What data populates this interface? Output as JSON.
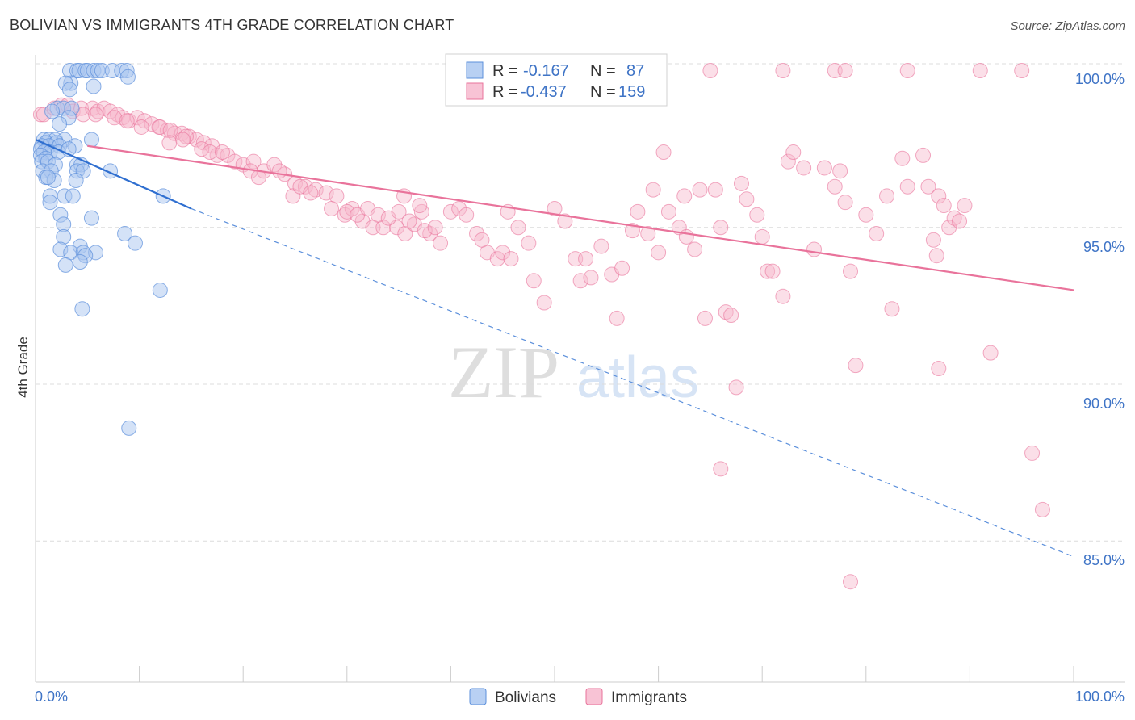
{
  "title": "BOLIVIAN VS IMMIGRANTS 4TH GRADE CORRELATION CHART",
  "source": "Source: ZipAtlas.com",
  "watermark": {
    "zip": "ZIP",
    "atlas": "atlas"
  },
  "legend": {
    "r_label": "R =",
    "n_label": "N =",
    "rows": [
      {
        "r": "-0.167",
        "n": "87",
        "color": "#5b8fdb"
      },
      {
        "r": "-0.437",
        "n": "159",
        "color": "#e9739b"
      }
    ]
  },
  "chart_data": {
    "type": "scatter",
    "title": "BOLIVIAN VS IMMIGRANTS 4TH GRADE CORRELATION CHART",
    "xlabel": "",
    "ylabel": "4th Grade",
    "xlim": [
      0,
      100
    ],
    "ylim": [
      80.5,
      100.4
    ],
    "x_tick_labels": [
      "0.0%",
      "100.0%"
    ],
    "y_ticks": [
      85,
      90,
      95,
      100
    ],
    "y_tick_labels": [
      "85.0%",
      "90.0%",
      "95.0%",
      "100.0%"
    ],
    "grid": "horizontal dashed",
    "legend_position": "top-center",
    "series": [
      {
        "name": "Bolivians",
        "color": "#5b8fdb",
        "fill": "#a9c6ef",
        "r": -0.167,
        "n": 87,
        "trend_solid": [
          [
            0,
            97.8
          ],
          [
            15,
            95.6
          ]
        ],
        "trend_dashed": [
          [
            15,
            95.6
          ],
          [
            100,
            84.5
          ]
        ],
        "points": [
          [
            3.3,
            100
          ],
          [
            4.0,
            100
          ],
          [
            4.2,
            100
          ],
          [
            4.8,
            100
          ],
          [
            5.0,
            100
          ],
          [
            5.6,
            100
          ],
          [
            6.0,
            100
          ],
          [
            6.4,
            100
          ],
          [
            7.4,
            100
          ],
          [
            8.3,
            100
          ],
          [
            8.8,
            100
          ],
          [
            3.4,
            99.6
          ],
          [
            2.9,
            99.6
          ],
          [
            5.6,
            99.5
          ],
          [
            3.3,
            99.4
          ],
          [
            8.9,
            99.8
          ],
          [
            2.1,
            98.8
          ],
          [
            2.7,
            98.8
          ],
          [
            3.5,
            98.8
          ],
          [
            1.6,
            98.7
          ],
          [
            3.2,
            98.5
          ],
          [
            2.3,
            98.3
          ],
          [
            0.8,
            97.8
          ],
          [
            1.3,
            97.8
          ],
          [
            1.9,
            97.8
          ],
          [
            2.8,
            97.8
          ],
          [
            5.4,
            97.8
          ],
          [
            1.0,
            97.7
          ],
          [
            2.0,
            97.7
          ],
          [
            0.6,
            97.6
          ],
          [
            1.3,
            97.6
          ],
          [
            2.3,
            97.6
          ],
          [
            3.8,
            97.6
          ],
          [
            0.5,
            97.5
          ],
          [
            0.8,
            97.4
          ],
          [
            1.4,
            97.4
          ],
          [
            2.2,
            97.4
          ],
          [
            3.2,
            97.5
          ],
          [
            0.5,
            97.3
          ],
          [
            1.0,
            97.2
          ],
          [
            0.6,
            97.1
          ],
          [
            1.2,
            97.1
          ],
          [
            1.9,
            97.0
          ],
          [
            4.0,
            97.0
          ],
          [
            4.4,
            97.0
          ],
          [
            0.7,
            96.8
          ],
          [
            1.5,
            96.8
          ],
          [
            1.0,
            96.6
          ],
          [
            4.0,
            96.8
          ],
          [
            4.6,
            96.8
          ],
          [
            7.2,
            96.8
          ],
          [
            1.8,
            96.5
          ],
          [
            1.2,
            96.6
          ],
          [
            3.9,
            96.5
          ],
          [
            2.8,
            96.0
          ],
          [
            1.4,
            96.0
          ],
          [
            3.6,
            96.0
          ],
          [
            1.4,
            95.8
          ],
          [
            12.3,
            96.0
          ],
          [
            2.4,
            95.4
          ],
          [
            5.4,
            95.3
          ],
          [
            2.7,
            95.1
          ],
          [
            8.6,
            94.8
          ],
          [
            2.7,
            94.7
          ],
          [
            9.6,
            94.5
          ],
          [
            4.3,
            94.4
          ],
          [
            2.4,
            94.3
          ],
          [
            3.4,
            94.2
          ],
          [
            4.6,
            94.2
          ],
          [
            5.8,
            94.2
          ],
          [
            4.8,
            94.1
          ],
          [
            4.3,
            93.9
          ],
          [
            2.9,
            93.8
          ],
          [
            12.0,
            93.0
          ],
          [
            4.5,
            92.4
          ],
          [
            9.0,
            88.6
          ]
        ]
      },
      {
        "name": "Immigrants",
        "color": "#e9739b",
        "fill": "#f6b9cd",
        "r": -0.437,
        "n": 159,
        "trend": [
          [
            5,
            97.6
          ],
          [
            100,
            93.0
          ]
        ],
        "points": [
          [
            65,
            100
          ],
          [
            72,
            100
          ],
          [
            77,
            100
          ],
          [
            78,
            100
          ],
          [
            84,
            100
          ],
          [
            91,
            100
          ],
          [
            95,
            100
          ],
          [
            0.5,
            98.6
          ],
          [
            0.8,
            98.6
          ],
          [
            1.8,
            98.8
          ],
          [
            2.5,
            98.9
          ],
          [
            3.1,
            98.9
          ],
          [
            3.6,
            98.7
          ],
          [
            4.4,
            98.8
          ],
          [
            5.5,
            98.8
          ],
          [
            6.0,
            98.7
          ],
          [
            6.6,
            98.8
          ],
          [
            7.2,
            98.7
          ],
          [
            7.9,
            98.6
          ],
          [
            8.4,
            98.5
          ],
          [
            9.0,
            98.4
          ],
          [
            9.8,
            98.5
          ],
          [
            10.5,
            98.4
          ],
          [
            11.2,
            98.3
          ],
          [
            11.9,
            98.2
          ],
          [
            12.7,
            98.1
          ],
          [
            13.4,
            98.0
          ],
          [
            14.1,
            98.0
          ],
          [
            14.8,
            97.9
          ],
          [
            15.5,
            97.8
          ],
          [
            16.2,
            97.7
          ],
          [
            17.0,
            97.6
          ],
          [
            4.6,
            98.6
          ],
          [
            5.8,
            98.6
          ],
          [
            7.6,
            98.5
          ],
          [
            8.8,
            98.4
          ],
          [
            10.2,
            98.2
          ],
          [
            12.0,
            98.2
          ],
          [
            13.0,
            98.1
          ],
          [
            14.5,
            97.9
          ],
          [
            16.0,
            97.5
          ],
          [
            17.5,
            97.3
          ],
          [
            18.5,
            97.3
          ],
          [
            19.2,
            97.1
          ],
          [
            20.0,
            97.0
          ],
          [
            21.0,
            97.1
          ],
          [
            22.0,
            96.8
          ],
          [
            23.0,
            97.0
          ],
          [
            24.0,
            96.7
          ],
          [
            25.0,
            96.4
          ],
          [
            26.0,
            96.3
          ],
          [
            27.0,
            96.2
          ],
          [
            28.0,
            96.1
          ],
          [
            29.0,
            96.0
          ],
          [
            12.9,
            97.7
          ],
          [
            14.2,
            97.8
          ],
          [
            16.8,
            97.4
          ],
          [
            18.0,
            97.4
          ],
          [
            20.7,
            96.8
          ],
          [
            21.5,
            96.6
          ],
          [
            23.5,
            96.8
          ],
          [
            24.8,
            96.0
          ],
          [
            25.5,
            96.3
          ],
          [
            26.5,
            96.1
          ],
          [
            28.5,
            95.6
          ],
          [
            29.8,
            95.4
          ],
          [
            30.5,
            95.6
          ],
          [
            31.5,
            95.2
          ],
          [
            32.5,
            95.0
          ],
          [
            33.5,
            95.0
          ],
          [
            34.8,
            95.0
          ],
          [
            35.6,
            94.8
          ],
          [
            36.5,
            95.1
          ],
          [
            37.2,
            95.5
          ],
          [
            38.0,
            94.8
          ],
          [
            39.0,
            94.5
          ],
          [
            30.0,
            95.5
          ],
          [
            31.0,
            95.4
          ],
          [
            32.0,
            95.6
          ],
          [
            33.0,
            95.4
          ],
          [
            34.0,
            95.3
          ],
          [
            35.0,
            95.5
          ],
          [
            36.0,
            95.2
          ],
          [
            37.5,
            94.9
          ],
          [
            38.5,
            95.0
          ],
          [
            40.0,
            95.5
          ],
          [
            40.8,
            95.6
          ],
          [
            41.5,
            95.4
          ],
          [
            42.5,
            94.8
          ],
          [
            43.5,
            94.2
          ],
          [
            44.5,
            94.0
          ],
          [
            45.5,
            95.5
          ],
          [
            46.5,
            95.0
          ],
          [
            47.5,
            94.5
          ],
          [
            48.0,
            93.3
          ],
          [
            49.0,
            92.6
          ],
          [
            50.0,
            95.6
          ],
          [
            51.0,
            95.2
          ],
          [
            52.0,
            94.0
          ],
          [
            52.5,
            93.3
          ],
          [
            53.5,
            93.4
          ],
          [
            54.5,
            94.4
          ],
          [
            55.5,
            93.5
          ],
          [
            56.0,
            92.1
          ],
          [
            56.5,
            93.7
          ],
          [
            35.5,
            96.0
          ],
          [
            37.0,
            95.7
          ],
          [
            43.0,
            94.6
          ],
          [
            45.0,
            94.2
          ],
          [
            45.8,
            94.0
          ],
          [
            53.0,
            94.0
          ],
          [
            57.5,
            94.9
          ],
          [
            58.0,
            95.5
          ],
          [
            59.0,
            94.8
          ],
          [
            60.0,
            94.2
          ],
          [
            61.0,
            95.5
          ],
          [
            62.0,
            95.0
          ],
          [
            62.7,
            94.7
          ],
          [
            63.5,
            94.3
          ],
          [
            59.5,
            96.2
          ],
          [
            60.5,
            97.4
          ],
          [
            62.5,
            96.0
          ],
          [
            64.0,
            96.2
          ],
          [
            64.5,
            92.1
          ],
          [
            65.5,
            96.2
          ],
          [
            66.0,
            95.0
          ],
          [
            66.5,
            92.3
          ],
          [
            67.0,
            92.2
          ],
          [
            67.5,
            89.9
          ],
          [
            68.0,
            96.4
          ],
          [
            68.5,
            95.9
          ],
          [
            69.5,
            95.4
          ],
          [
            70.0,
            94.7
          ],
          [
            70.5,
            93.6
          ],
          [
            71.0,
            93.6
          ],
          [
            72.0,
            92.8
          ],
          [
            72.5,
            97.1
          ],
          [
            73.0,
            97.4
          ],
          [
            74.0,
            96.9
          ],
          [
            75.0,
            94.3
          ],
          [
            76.0,
            96.9
          ],
          [
            77.0,
            96.3
          ],
          [
            77.5,
            96.8
          ],
          [
            78.0,
            95.8
          ],
          [
            78.5,
            93.6
          ],
          [
            79.0,
            90.6
          ],
          [
            80.0,
            95.4
          ],
          [
            81.0,
            94.8
          ],
          [
            82.0,
            96.0
          ],
          [
            82.5,
            92.4
          ],
          [
            83.5,
            97.2
          ],
          [
            84.0,
            96.3
          ],
          [
            85.5,
            97.3
          ],
          [
            86.0,
            96.3
          ],
          [
            86.5,
            94.6
          ],
          [
            87.0,
            96.0
          ],
          [
            87.5,
            95.7
          ],
          [
            88.0,
            95.0
          ],
          [
            88.5,
            95.3
          ],
          [
            89.0,
            95.2
          ],
          [
            89.5,
            95.7
          ],
          [
            86.8,
            94.1
          ],
          [
            66.0,
            87.3
          ],
          [
            78.5,
            83.7
          ],
          [
            87.0,
            90.5
          ],
          [
            92.0,
            91.0
          ],
          [
            96.0,
            87.8
          ],
          [
            97.0,
            86.0
          ]
        ]
      }
    ]
  },
  "bottom_legend": [
    {
      "label": "Bolivians",
      "color": "#5b8fdb"
    },
    {
      "label": "Immigrants",
      "color": "#e9739b"
    }
  ]
}
